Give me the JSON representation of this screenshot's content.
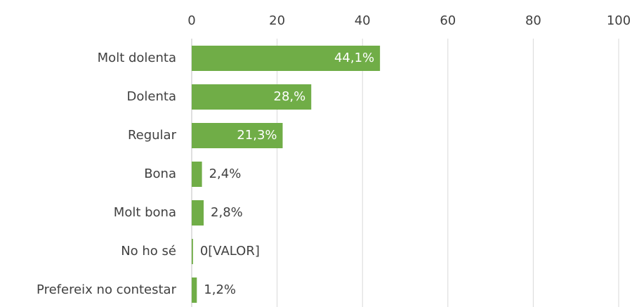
{
  "chart_data": {
    "type": "bar",
    "orientation": "horizontal",
    "categories": [
      "Molt dolenta",
      "Dolenta",
      "Regular",
      "Bona",
      "Molt bona",
      "No ho sé",
      "Prefereix no contestar"
    ],
    "values": [
      44.1,
      28,
      21.3,
      2.4,
      2.8,
      0.3,
      1.2
    ],
    "value_labels": [
      "44,1%",
      "28,%",
      "21,3%",
      "2,4%",
      "2,8%",
      "0[VALOR]",
      "1,2%"
    ],
    "color": "#70ad47",
    "xlim": [
      0,
      100
    ],
    "xticks": [
      0,
      20,
      40,
      60,
      80,
      100
    ],
    "grid": true
  }
}
